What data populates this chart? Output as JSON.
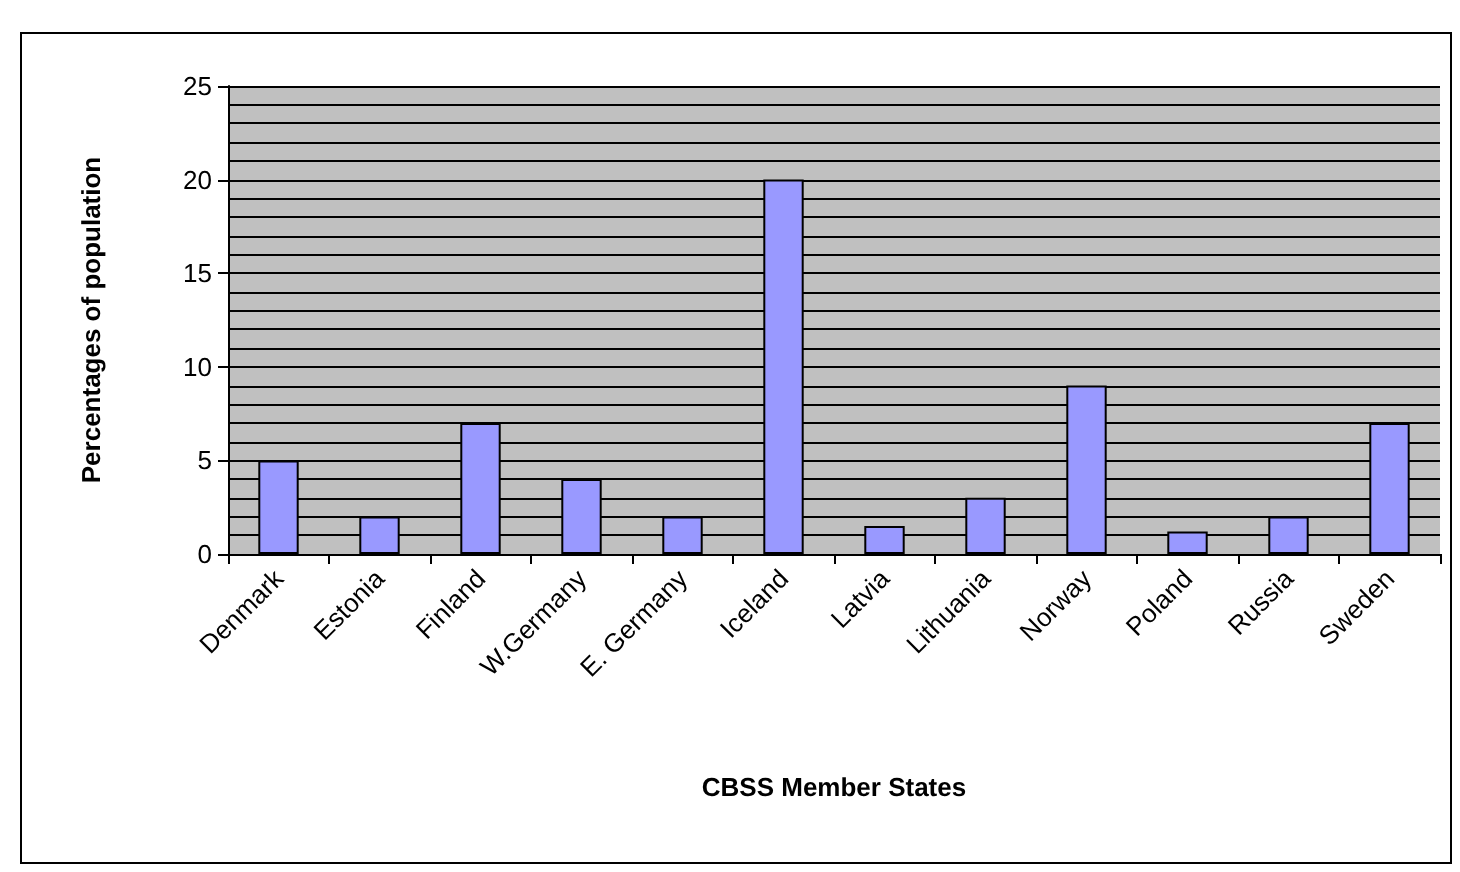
{
  "chart_data": {
    "type": "bar",
    "xlabel": "CBSS Member States",
    "ylabel": "Percentages of population",
    "categories": [
      "Denmark",
      "Estonia",
      "Finland",
      "W.Germany",
      "E. Germany",
      "Iceland",
      "Latvia",
      "Lithuania",
      "Norway",
      "Poland",
      "Russia",
      "Sweden"
    ],
    "values": [
      5,
      2,
      7,
      4,
      2,
      20,
      1.5,
      3,
      9,
      1.2,
      2,
      7
    ],
    "color": "#9999ff",
    "ylim": [
      0,
      25
    ],
    "yticks": [
      0,
      5,
      10,
      15,
      20,
      25
    ],
    "grid": true
  }
}
